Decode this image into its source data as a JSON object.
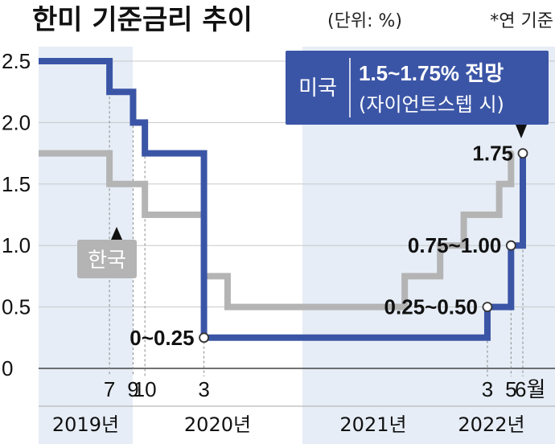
{
  "title": "한미 기준금리 추이",
  "unit": "(단위: %)",
  "note": "*연 기준",
  "colors": {
    "usa": "#3b55a6",
    "korea": "#b4b4b4",
    "band": "#e6edf6",
    "grid": "#c8c8c8"
  },
  "chart_data": {
    "type": "line",
    "subtype": "step",
    "ylim": [
      0,
      2.5
    ],
    "y_ticks": [
      "0",
      "0.5",
      "1.0",
      "1.5",
      "2.0",
      "2.5"
    ],
    "x_range": [
      "2019-01",
      "2022-06"
    ],
    "x_ticks": [
      {
        "x": "2019-07",
        "label": "7"
      },
      {
        "x": "2019-09",
        "label": "9"
      },
      {
        "x": "2019-10",
        "label": "10"
      },
      {
        "x": "2020-03",
        "label": "3"
      },
      {
        "x": "2022-03",
        "label": "3"
      },
      {
        "x": "2022-05",
        "label": "5"
      },
      {
        "x": "2022-06",
        "label": "6월"
      }
    ],
    "years": [
      {
        "label": "2019년",
        "shaded": true
      },
      {
        "label": "2020년",
        "shaded": false
      },
      {
        "label": "2021년",
        "shaded": true
      },
      {
        "label": "2022년",
        "shaded": true
      }
    ],
    "series": [
      {
        "name": "미국",
        "points": [
          {
            "x": "2019-01",
            "y": 2.5
          },
          {
            "x": "2019-07",
            "y": 2.25
          },
          {
            "x": "2019-09",
            "y": 2.0
          },
          {
            "x": "2019-10",
            "y": 1.75
          },
          {
            "x": "2020-03",
            "y": 0.25
          },
          {
            "x": "2022-03",
            "y": 0.5
          },
          {
            "x": "2022-05",
            "y": 1.0
          },
          {
            "x": "2022-06",
            "y": 1.75
          }
        ],
        "labels": [
          {
            "x": "2020-03",
            "y": 0.25,
            "text": "0~0.25"
          },
          {
            "x": "2022-03",
            "y": 0.5,
            "text": "0.25~0.50"
          },
          {
            "x": "2022-05",
            "y": 1.0,
            "text": "0.75~1.00"
          },
          {
            "x": "2022-06",
            "y": 1.75,
            "text": "1.75"
          }
        ]
      },
      {
        "name": "한국",
        "points": [
          {
            "x": "2019-01",
            "y": 1.75
          },
          {
            "x": "2019-07",
            "y": 1.5
          },
          {
            "x": "2019-10",
            "y": 1.25
          },
          {
            "x": "2020-03",
            "y": 0.75
          },
          {
            "x": "2020-05",
            "y": 0.5
          },
          {
            "x": "2021-08",
            "y": 0.75
          },
          {
            "x": "2021-11",
            "y": 1.0
          },
          {
            "x": "2022-01",
            "y": 1.25
          },
          {
            "x": "2022-04",
            "y": 1.5
          },
          {
            "x": "2022-05",
            "y": 1.75
          }
        ]
      }
    ],
    "callout": {
      "label": "미국",
      "value": "1.5~1.75% 전망",
      "source": "(자이언트스텝 시)"
    }
  }
}
